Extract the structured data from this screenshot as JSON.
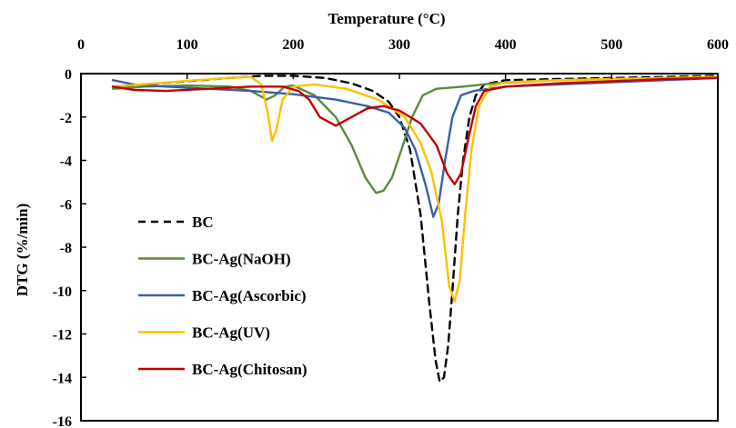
{
  "chart_data": {
    "type": "line",
    "xlabel": "Temperature (°C)",
    "ylabel": "DTG (%/min)",
    "xlim": [
      0,
      600
    ],
    "ylim": [
      -16,
      0
    ],
    "x_ticks": [
      0,
      100,
      200,
      300,
      400,
      500,
      600
    ],
    "y_ticks": [
      0,
      -2,
      -4,
      -6,
      -8,
      -10,
      -12,
      -14,
      -16
    ],
    "x_axis_position": "top",
    "grid": false,
    "legend_position": "left-bottom",
    "series": [
      {
        "name": "BC",
        "color": "#000000",
        "dash": "dashed",
        "points": [
          [
            30,
            -0.6
          ],
          [
            60,
            -0.5
          ],
          [
            100,
            -0.35
          ],
          [
            140,
            -0.2
          ],
          [
            170,
            -0.1
          ],
          [
            200,
            -0.1
          ],
          [
            230,
            -0.2
          ],
          [
            255,
            -0.45
          ],
          [
            275,
            -0.8
          ],
          [
            290,
            -1.3
          ],
          [
            300,
            -2.0
          ],
          [
            310,
            -3.5
          ],
          [
            320,
            -6.5
          ],
          [
            328,
            -10.5
          ],
          [
            334,
            -13.2
          ],
          [
            338,
            -14.2
          ],
          [
            342,
            -14.0
          ],
          [
            346,
            -12.5
          ],
          [
            350,
            -10.0
          ],
          [
            355,
            -6.5
          ],
          [
            360,
            -4.0
          ],
          [
            366,
            -2.0
          ],
          [
            372,
            -1.0
          ],
          [
            380,
            -0.5
          ],
          [
            400,
            -0.3
          ],
          [
            450,
            -0.25
          ],
          [
            500,
            -0.2
          ],
          [
            550,
            -0.15
          ],
          [
            600,
            -0.1
          ]
        ]
      },
      {
        "name": "BC-Ag(NaOH)",
        "color": "#5a8a3a",
        "dash": "solid",
        "points": [
          [
            30,
            -0.7
          ],
          [
            60,
            -0.6
          ],
          [
            100,
            -0.55
          ],
          [
            140,
            -0.6
          ],
          [
            160,
            -0.8
          ],
          [
            175,
            -1.2
          ],
          [
            183,
            -1.0
          ],
          [
            192,
            -0.6
          ],
          [
            200,
            -0.55
          ],
          [
            220,
            -1.0
          ],
          [
            240,
            -2.0
          ],
          [
            255,
            -3.3
          ],
          [
            268,
            -4.8
          ],
          [
            278,
            -5.5
          ],
          [
            285,
            -5.4
          ],
          [
            293,
            -4.8
          ],
          [
            302,
            -3.5
          ],
          [
            312,
            -2.0
          ],
          [
            322,
            -1.0
          ],
          [
            335,
            -0.7
          ],
          [
            360,
            -0.6
          ],
          [
            390,
            -0.45
          ],
          [
            450,
            -0.3
          ],
          [
            500,
            -0.25
          ],
          [
            550,
            -0.2
          ],
          [
            600,
            -0.15
          ]
        ]
      },
      {
        "name": "BC-Ag(Ascorbic)",
        "color": "#3a5fa8",
        "dash": "solid",
        "points": [
          [
            30,
            -0.3
          ],
          [
            50,
            -0.5
          ],
          [
            80,
            -0.6
          ],
          [
            120,
            -0.7
          ],
          [
            160,
            -0.8
          ],
          [
            200,
            -0.95
          ],
          [
            240,
            -1.2
          ],
          [
            270,
            -1.5
          ],
          [
            290,
            -1.8
          ],
          [
            305,
            -2.5
          ],
          [
            315,
            -3.5
          ],
          [
            325,
            -5.2
          ],
          [
            332,
            -6.6
          ],
          [
            337,
            -6.0
          ],
          [
            343,
            -4.0
          ],
          [
            350,
            -2.0
          ],
          [
            358,
            -1.0
          ],
          [
            370,
            -0.8
          ],
          [
            400,
            -0.6
          ],
          [
            450,
            -0.5
          ],
          [
            500,
            -0.4
          ],
          [
            550,
            -0.3
          ],
          [
            600,
            -0.2
          ]
        ]
      },
      {
        "name": "BC-Ag(UV)",
        "color": "#ffc000",
        "dash": "solid",
        "points": [
          [
            30,
            -0.6
          ],
          [
            70,
            -0.45
          ],
          [
            110,
            -0.3
          ],
          [
            140,
            -0.2
          ],
          [
            160,
            -0.15
          ],
          [
            170,
            -0.5
          ],
          [
            176,
            -1.8
          ],
          [
            180,
            -3.1
          ],
          [
            184,
            -2.6
          ],
          [
            190,
            -1.2
          ],
          [
            200,
            -0.6
          ],
          [
            220,
            -0.5
          ],
          [
            250,
            -0.7
          ],
          [
            280,
            -1.2
          ],
          [
            305,
            -2.0
          ],
          [
            320,
            -3.2
          ],
          [
            330,
            -4.5
          ],
          [
            340,
            -6.8
          ],
          [
            347,
            -9.8
          ],
          [
            352,
            -10.5
          ],
          [
            357,
            -9.5
          ],
          [
            362,
            -6.5
          ],
          [
            368,
            -3.5
          ],
          [
            375,
            -1.5
          ],
          [
            385,
            -0.6
          ],
          [
            400,
            -0.4
          ],
          [
            450,
            -0.3
          ],
          [
            500,
            -0.25
          ],
          [
            550,
            -0.2
          ],
          [
            600,
            -0.15
          ]
        ]
      },
      {
        "name": "BC-Ag(Chitosan)",
        "color": "#c00000",
        "dash": "solid",
        "points": [
          [
            30,
            -0.6
          ],
          [
            50,
            -0.75
          ],
          [
            80,
            -0.8
          ],
          [
            120,
            -0.7
          ],
          [
            160,
            -0.6
          ],
          [
            190,
            -0.6
          ],
          [
            205,
            -0.8
          ],
          [
            215,
            -1.2
          ],
          [
            225,
            -2.0
          ],
          [
            240,
            -2.4
          ],
          [
            255,
            -2.0
          ],
          [
            270,
            -1.6
          ],
          [
            285,
            -1.5
          ],
          [
            300,
            -1.7
          ],
          [
            320,
            -2.3
          ],
          [
            335,
            -3.3
          ],
          [
            345,
            -4.6
          ],
          [
            352,
            -5.1
          ],
          [
            358,
            -4.6
          ],
          [
            365,
            -3.0
          ],
          [
            372,
            -1.5
          ],
          [
            380,
            -0.8
          ],
          [
            400,
            -0.6
          ],
          [
            450,
            -0.45
          ],
          [
            500,
            -0.35
          ],
          [
            550,
            -0.25
          ],
          [
            600,
            -0.2
          ]
        ]
      }
    ]
  }
}
